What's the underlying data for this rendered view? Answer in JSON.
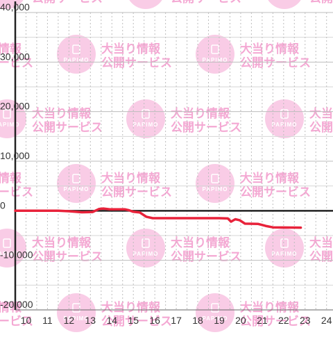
{
  "watermark": {
    "logo_text": "PAPIMO",
    "line1": "大当り情報",
    "line2": "公開サービス",
    "color": "#f9cce6",
    "text_color": "#f4a8d3"
  },
  "chart_data": {
    "type": "line",
    "title": "",
    "xlabel": "",
    "ylabel": "",
    "xlim": [
      9.5,
      24.3
    ],
    "ylim": [
      -20000,
      40000
    ],
    "x_ticks": [
      10,
      11,
      12,
      13,
      14,
      15,
      16,
      17,
      18,
      19,
      20,
      21,
      22,
      23,
      24
    ],
    "x_tick_labels": [
      "10",
      "11",
      "12",
      "13",
      "14",
      "15",
      "16",
      "17",
      "18",
      "19",
      "20",
      "21",
      "22",
      "23",
      "24"
    ],
    "y_ticks": [
      40000,
      30000,
      20000,
      10000,
      0,
      -10000,
      -20000
    ],
    "y_tick_labels": [
      "40,000",
      "30,000",
      "20,000",
      "10,000",
      "0",
      "-10,000",
      "-20,000"
    ],
    "y_minor_step": 5000,
    "x_minor_step": 0.5,
    "grid": true,
    "series": [
      {
        "color": "#e8223a",
        "points": [
          [
            9.5,
            0
          ],
          [
            11.5,
            0
          ],
          [
            12.0,
            -100
          ],
          [
            12.6,
            -300
          ],
          [
            13.1,
            -250
          ],
          [
            13.4,
            350
          ],
          [
            13.6,
            450
          ],
          [
            13.9,
            300
          ],
          [
            14.6,
            300
          ],
          [
            14.8,
            100
          ],
          [
            15.0,
            -200
          ],
          [
            15.3,
            -350
          ],
          [
            15.6,
            -1200
          ],
          [
            15.9,
            -1500
          ],
          [
            17.0,
            -1500
          ],
          [
            19.0,
            -1500
          ],
          [
            19.4,
            -1550
          ],
          [
            19.55,
            -2200
          ],
          [
            19.75,
            -1700
          ],
          [
            19.95,
            -1900
          ],
          [
            20.2,
            -2600
          ],
          [
            20.8,
            -2650
          ],
          [
            21.2,
            -3100
          ],
          [
            21.5,
            -3350
          ],
          [
            22.8,
            -3400
          ]
        ]
      }
    ]
  }
}
